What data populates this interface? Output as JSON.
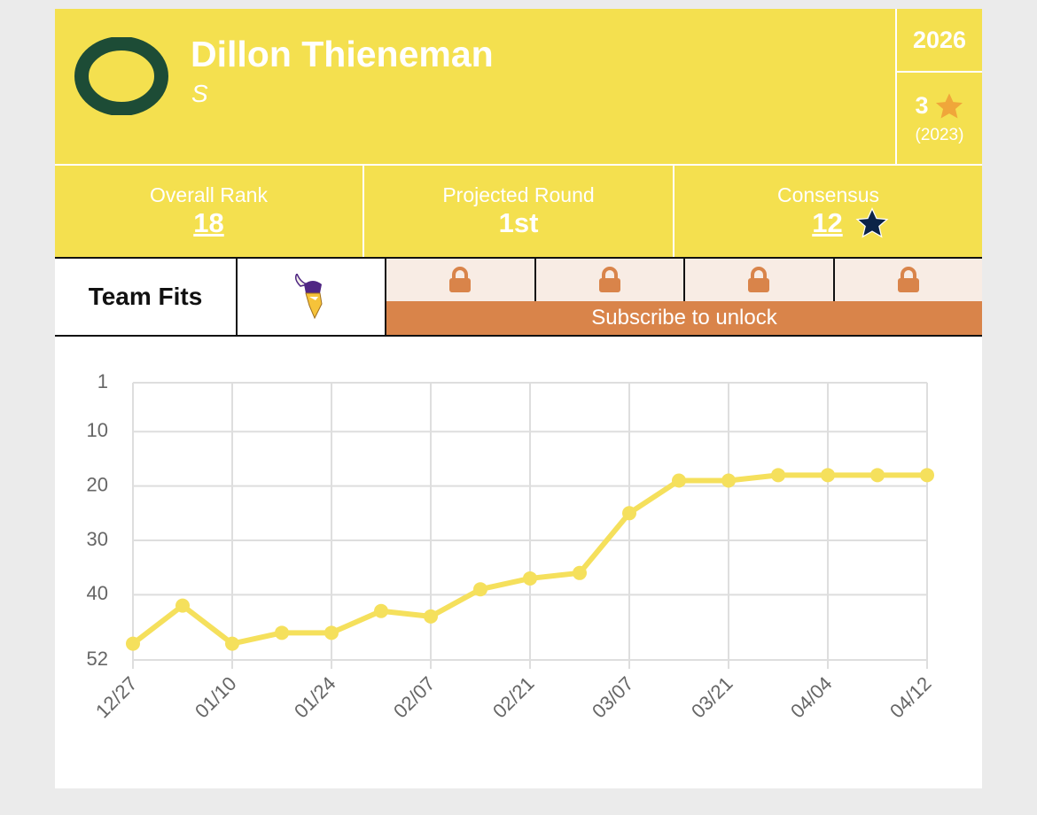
{
  "header": {
    "name": "Dillon Thieneman",
    "position": "S",
    "class_year": "2026",
    "stars": "3",
    "star_year": "(2023)"
  },
  "stats": [
    {
      "label": "Overall Rank",
      "value": "18"
    },
    {
      "label": "Projected Round",
      "value": "1st"
    },
    {
      "label": "Consensus",
      "value": "12"
    }
  ],
  "team_fits": {
    "label": "Team Fits",
    "locked_text": "Subscribe to unlock"
  },
  "chart_data": {
    "type": "line",
    "categories": [
      "12/27",
      null,
      "01/10",
      null,
      "01/24",
      null,
      "02/07",
      null,
      "02/21",
      null,
      "03/07",
      null,
      "03/21",
      null,
      "04/04",
      null,
      "04/12"
    ],
    "series": [
      {
        "color": "#f5e05c",
        "values": [
          49,
          42,
          49,
          47,
          47,
          43,
          44,
          39,
          37,
          36,
          25,
          19,
          19,
          18,
          18,
          18,
          18
        ]
      }
    ],
    "ylim": [
      1,
      52
    ],
    "y_inverted": true,
    "yticks": [
      1,
      10,
      20,
      30,
      40,
      52
    ],
    "grid": true
  }
}
